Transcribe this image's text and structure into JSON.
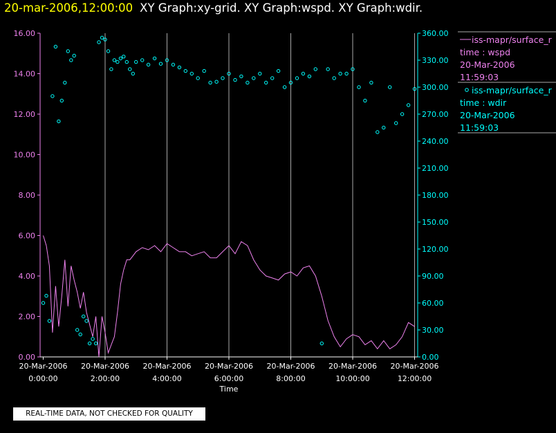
{
  "header": {
    "date_time": "20-mar-2006,12:00:00",
    "graphs": "XY Graph:xy-grid.  XY Graph:wspd.  XY Graph:wdir."
  },
  "disclaimer": "REAL-TIME DATA, NOT CHECKED FOR QUALITY",
  "colors": {
    "wspd": "#ee82ee",
    "wdir": "#00ffff",
    "grid": "#aaaaaa",
    "title_date": "#ffff00"
  },
  "legend": [
    {
      "series": "wspd",
      "marker": "line",
      "name": "iss-mapr/surface_r",
      "time": "time : wspd",
      "date": "20-Mar-2006",
      "clock": "11:59:03"
    },
    {
      "series": "wdir",
      "marker": "circle",
      "name": "iss-mapr/surface_r",
      "time": "time : wdir",
      "date": "20-Mar-2006",
      "clock": "11:59:03"
    }
  ],
  "chart_data": {
    "type": "line",
    "title": "20-mar-2006,12:00:00  XY Graph:xy-grid.  XY Graph:wspd.  XY Graph:wdir.",
    "xlabel": "Time",
    "xlim_hours": [
      -0.1,
      12.1
    ],
    "x_ticks": [
      {
        "hour": 0,
        "date": "20-Mar-2006",
        "time": "0:00:00"
      },
      {
        "hour": 2,
        "date": "20-Mar-2006",
        "time": "2:00:00"
      },
      {
        "hour": 4,
        "date": "20-Mar-2006",
        "time": "4:00:00"
      },
      {
        "hour": 6,
        "date": "20-Mar-2006",
        "time": "6:00:00"
      },
      {
        "hour": 8,
        "date": "20-Mar-2006",
        "time": "8:00:00"
      },
      {
        "hour": 10,
        "date": "20-Mar-2006",
        "time": "10:00:00"
      },
      {
        "hour": 12,
        "date": "20-Mar-2006",
        "time": "12:00:00"
      }
    ],
    "grid_hours": [
      2,
      4,
      6,
      8,
      10,
      12
    ],
    "left_axis": {
      "series": "wspd",
      "ylim": [
        0,
        16
      ],
      "ticks": [
        "0.00",
        "2.00",
        "4.00",
        "6.00",
        "8.00",
        "10.00",
        "12.00",
        "14.00",
        "16.00"
      ]
    },
    "right_axis": {
      "series": "wdir",
      "ylim": [
        0,
        360
      ],
      "ticks": [
        "0.00",
        "30.00",
        "60.00",
        "90.00",
        "120.00",
        "150.00",
        "180.00",
        "210.00",
        "240.00",
        "270.00",
        "300.00",
        "330.00",
        "360.00"
      ]
    },
    "series": [
      {
        "name": "wspd",
        "style": "line",
        "axis": "left",
        "x": [
          0,
          0.1,
          0.2,
          0.3,
          0.4,
          0.5,
          0.6,
          0.7,
          0.8,
          0.9,
          1.0,
          1.1,
          1.2,
          1.3,
          1.4,
          1.5,
          1.6,
          1.7,
          1.8,
          1.9,
          2.0,
          2.1,
          2.2,
          2.3,
          2.4,
          2.5,
          2.6,
          2.7,
          2.8,
          2.9,
          3.0,
          3.2,
          3.4,
          3.6,
          3.8,
          4.0,
          4.2,
          4.4,
          4.6,
          4.8,
          5.0,
          5.2,
          5.4,
          5.6,
          5.8,
          6.0,
          6.2,
          6.4,
          6.6,
          6.8,
          7.0,
          7.2,
          7.4,
          7.6,
          7.8,
          8.0,
          8.2,
          8.4,
          8.6,
          8.8,
          9.0,
          9.2,
          9.4,
          9.6,
          9.8,
          10.0,
          10.2,
          10.4,
          10.6,
          10.8,
          11.0,
          11.2,
          11.4,
          11.6,
          11.8,
          12.0
        ],
        "y": [
          6.0,
          5.5,
          4.5,
          1.2,
          3.5,
          1.5,
          3.0,
          4.8,
          2.5,
          4.5,
          3.8,
          3.2,
          2.4,
          3.2,
          2.2,
          1.6,
          1.0,
          2.0,
          0.0,
          2.0,
          1.2,
          0.2,
          0.6,
          1.0,
          2.2,
          3.6,
          4.3,
          4.8,
          4.8,
          5.0,
          5.2,
          5.4,
          5.3,
          5.5,
          5.2,
          5.6,
          5.4,
          5.2,
          5.2,
          5.0,
          5.1,
          5.2,
          4.9,
          4.9,
          5.2,
          5.5,
          5.1,
          5.7,
          5.5,
          4.8,
          4.3,
          4.0,
          3.9,
          3.8,
          4.1,
          4.2,
          4.0,
          4.4,
          4.5,
          4.0,
          3.0,
          1.8,
          1.0,
          0.5,
          0.9,
          1.1,
          1.0,
          0.6,
          0.8,
          0.4,
          0.8,
          0.4,
          0.6,
          1.0,
          1.7,
          1.5
        ]
      },
      {
        "name": "wdir",
        "style": "scatter",
        "axis": "right",
        "x": [
          0,
          0.1,
          0.2,
          0.3,
          0.4,
          0.5,
          0.6,
          0.7,
          0.8,
          0.9,
          1.0,
          1.1,
          1.2,
          1.3,
          1.4,
          1.5,
          1.6,
          1.7,
          1.8,
          1.9,
          2.0,
          2.1,
          2.2,
          2.3,
          2.4,
          2.5,
          2.6,
          2.7,
          2.8,
          2.9,
          3.0,
          3.2,
          3.4,
          3.6,
          3.8,
          4.0,
          4.2,
          4.4,
          4.6,
          4.8,
          5.0,
          5.2,
          5.4,
          5.6,
          5.8,
          6.0,
          6.2,
          6.4,
          6.6,
          6.8,
          7.0,
          7.2,
          7.4,
          7.6,
          7.8,
          8.0,
          8.2,
          8.4,
          8.6,
          8.8,
          9.0,
          9.2,
          9.4,
          9.6,
          9.8,
          10.0,
          10.2,
          10.4,
          10.6,
          10.8,
          11.0,
          11.2,
          11.4,
          11.6,
          11.8,
          12.0
        ],
        "y": [
          60,
          68,
          40,
          290,
          345,
          262,
          285,
          305,
          340,
          330,
          335,
          30,
          25,
          45,
          40,
          15,
          20,
          15,
          350,
          355,
          353,
          340,
          320,
          330,
          328,
          332,
          334,
          328,
          320,
          315,
          328,
          330,
          325,
          332,
          326,
          330,
          325,
          322,
          318,
          315,
          310,
          318,
          305,
          306,
          310,
          315,
          308,
          312,
          305,
          310,
          315,
          305,
          310,
          318,
          300,
          305,
          310,
          315,
          312,
          320,
          15,
          320,
          310,
          315,
          315,
          320,
          300,
          285,
          305,
          250,
          255,
          300,
          260,
          270,
          280,
          298
        ]
      }
    ]
  }
}
